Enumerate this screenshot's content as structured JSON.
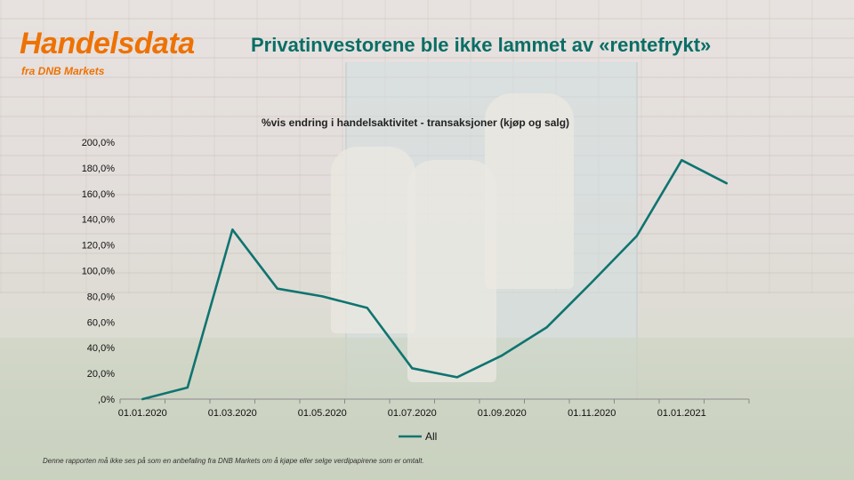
{
  "brand": {
    "title": "Handelsdata",
    "subtitle": "fra DNB Markets",
    "color": "#ee7203"
  },
  "headline": "Privatinvestorene ble ikke lammet av «rentefrykt»",
  "disclaimer": "Denne rapporten må ikke ses på som en anbefaling fra DNB Markets om å kjøpe eller selge verdipapirene som er omtalt.",
  "colors": {
    "headline": "#0a6e66",
    "series": "#0f7470"
  },
  "chart_data": {
    "type": "line",
    "title": "%vis  endring i handelsaktivitet - transaksjoner (kjøp og salg)",
    "xlabel": "",
    "ylabel": "",
    "ylim": [
      0,
      200
    ],
    "yticks": [
      0,
      20,
      40,
      60,
      80,
      100,
      120,
      140,
      160,
      180,
      200
    ],
    "ytick_labels": [
      ",0%",
      "20,0%",
      "40,0%",
      "60,0%",
      "80,0%",
      "100,0%",
      "120,0%",
      "140,0%",
      "160,0%",
      "180,0%",
      "200,0%"
    ],
    "xtick_labels": [
      "01.01.2020",
      "01.03.2020",
      "01.05.2020",
      "01.07.2020",
      "01.09.2020",
      "01.11.2020",
      "01.01.2021"
    ],
    "x": [
      "01.01.2020",
      "01.02.2020",
      "01.03.2020",
      "01.04.2020",
      "01.05.2020",
      "01.06.2020",
      "01.07.2020",
      "01.08.2020",
      "01.09.2020",
      "01.10.2020",
      "01.11.2020",
      "01.12.2020",
      "01.01.2021",
      "01.02.2021"
    ],
    "series": [
      {
        "name": "All",
        "values": [
          0,
          9,
          132,
          86,
          80,
          71,
          24,
          17,
          34,
          56,
          91,
          127,
          186,
          168
        ]
      }
    ],
    "grid": false,
    "legend": "bottom-center"
  }
}
